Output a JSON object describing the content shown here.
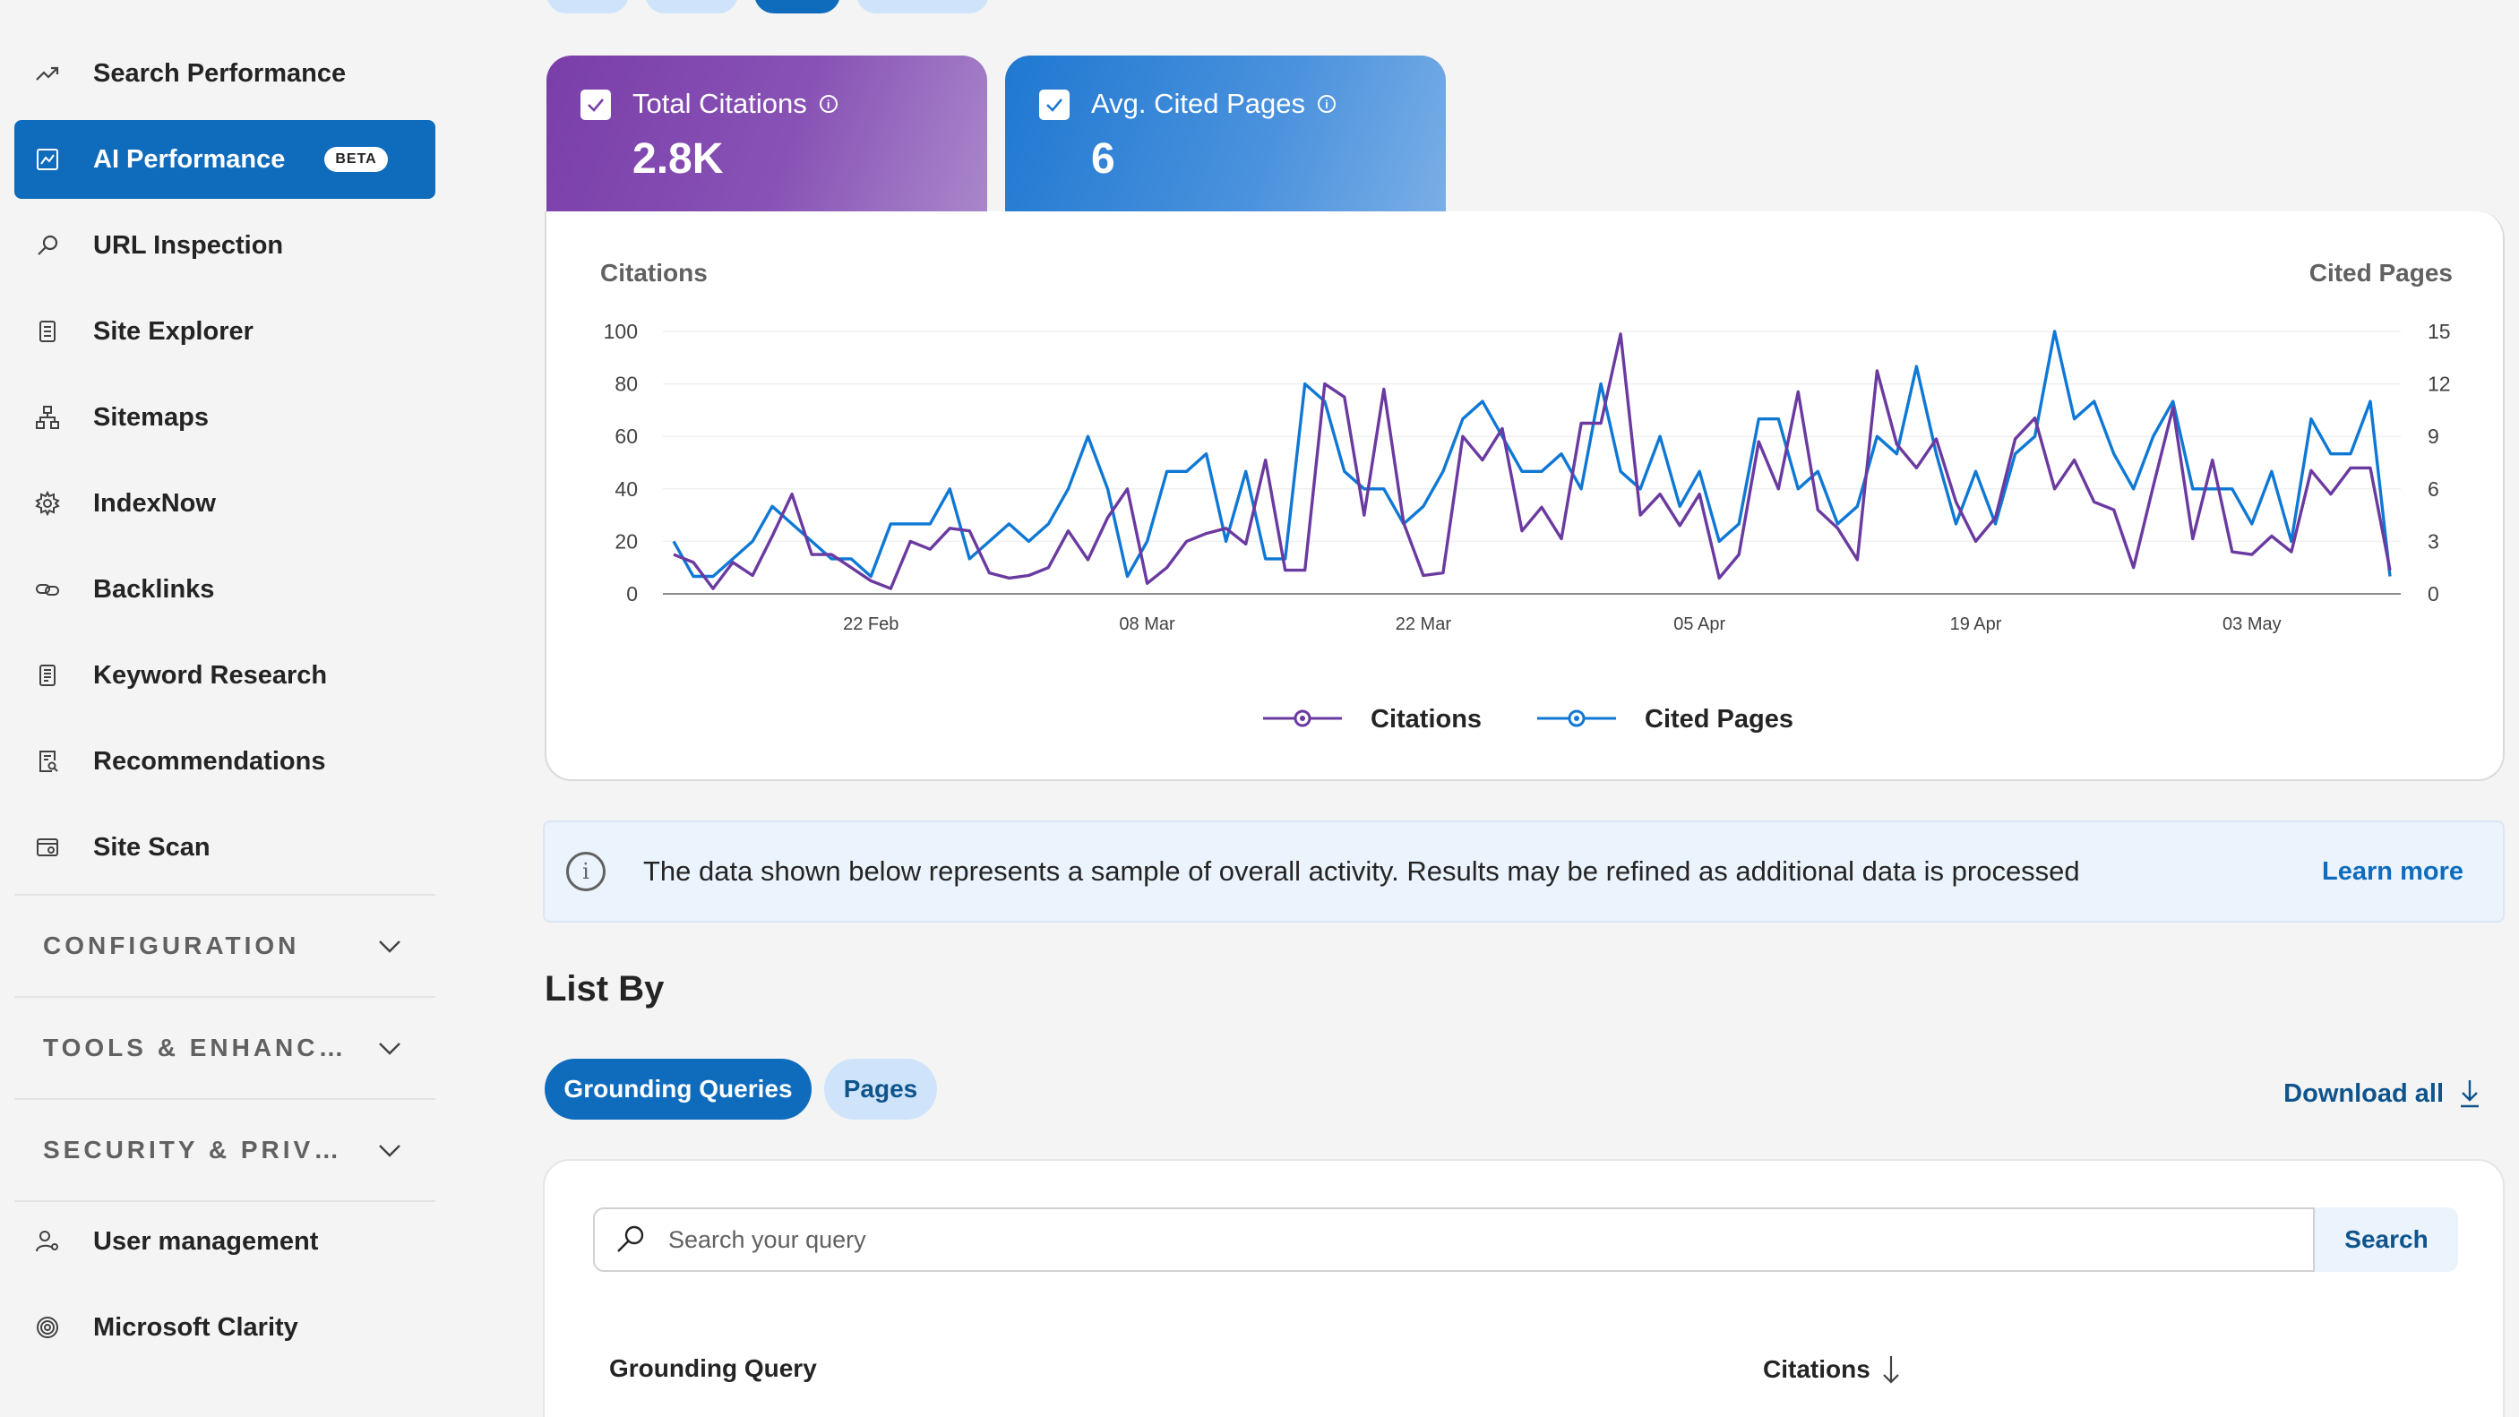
{
  "sidebar": {
    "items": [
      {
        "label": "Search Performance",
        "icon": "trending-up-icon"
      },
      {
        "label": "AI Performance",
        "icon": "chart-image-icon",
        "badge": "BETA",
        "active": true
      },
      {
        "label": "URL Inspection",
        "icon": "search-icon"
      },
      {
        "label": "Site Explorer",
        "icon": "document-list-icon"
      },
      {
        "label": "Sitemaps",
        "icon": "sitemap-icon"
      },
      {
        "label": "IndexNow",
        "icon": "settings-gear-icon"
      },
      {
        "label": "Backlinks",
        "icon": "link-icon"
      },
      {
        "label": "Keyword Research",
        "icon": "document-text-icon"
      },
      {
        "label": "Recommendations",
        "icon": "document-search-icon"
      },
      {
        "label": "Site Scan",
        "icon": "window-scan-icon"
      }
    ],
    "sections": [
      {
        "label": "CONFIGURATION"
      },
      {
        "label": "TOOLS & ENHANC…"
      },
      {
        "label": "SECURITY & PRIV…"
      }
    ],
    "bottom_items": [
      {
        "label": "User management",
        "icon": "user-settings-icon"
      },
      {
        "label": "Microsoft Clarity",
        "icon": "clarity-icon"
      }
    ]
  },
  "metrics": {
    "citations": {
      "title": "Total Citations",
      "value": "2.8K",
      "checked": true,
      "color": "#7a3ea9"
    },
    "pages": {
      "title": "Avg. Cited Pages",
      "value": "6",
      "checked": true,
      "color": "#1f78d1"
    }
  },
  "chart_data": {
    "type": "line",
    "left_axis_label": "Citations",
    "right_axis_label": "Cited Pages",
    "y_left_ticks": [
      "100",
      "80",
      "60",
      "40",
      "20",
      "0"
    ],
    "y_right_ticks": [
      "15",
      "12",
      "9",
      "6",
      "3",
      "0"
    ],
    "ylim_left": [
      0,
      100
    ],
    "ylim_right": [
      0,
      15
    ],
    "x_tick_labels": [
      "22 Feb",
      "08 Mar",
      "22 Mar",
      "05 Apr",
      "19 Apr",
      "03 May"
    ],
    "x_tick_index": [
      10,
      24,
      38,
      52,
      66,
      80
    ],
    "series": [
      {
        "name": "Citations",
        "axis": "left",
        "color": "#6b3aa0",
        "values": [
          15,
          12,
          2,
          12,
          7,
          22,
          38,
          15,
          15,
          10,
          5,
          2,
          20,
          17,
          25,
          24,
          8,
          6,
          7,
          10,
          24,
          13,
          29,
          40,
          4,
          10,
          20,
          23,
          25,
          19,
          51,
          9,
          9,
          80,
          75,
          30,
          78,
          27,
          7,
          8,
          60,
          51,
          63,
          24,
          33,
          21,
          65,
          65,
          99,
          30,
          38,
          26,
          38,
          6,
          15,
          58,
          40,
          77,
          32,
          25,
          13,
          85,
          57,
          48,
          59,
          35,
          20,
          29,
          59,
          67,
          40,
          51,
          35,
          32,
          10,
          41,
          71,
          21,
          51,
          16,
          15,
          22,
          16,
          47,
          38,
          48,
          48,
          9
        ]
      },
      {
        "name": "Cited Pages",
        "axis": "right",
        "color": "#0f78d4",
        "values": [
          3,
          1,
          1,
          2,
          3,
          5,
          4,
          3,
          2,
          2,
          1,
          4,
          4,
          4,
          6,
          2,
          3,
          4,
          3,
          4,
          6,
          9,
          6,
          1,
          3,
          7,
          7,
          8,
          3,
          7,
          2,
          2,
          12,
          11,
          7,
          6,
          6,
          4,
          5,
          7,
          10,
          11,
          9,
          7,
          7,
          8,
          6,
          12,
          7,
          6,
          9,
          5,
          7,
          3,
          4,
          10,
          10,
          6,
          7,
          4,
          5,
          9,
          8,
          13,
          8,
          4,
          7,
          4,
          8,
          9,
          15,
          10,
          11,
          8,
          6,
          9,
          11,
          6,
          6,
          6,
          4,
          7,
          3,
          10,
          8,
          8,
          11,
          1
        ]
      }
    ],
    "legend": [
      "Citations",
      "Cited Pages"
    ],
    "legend_position": "bottom-center",
    "grid": true
  },
  "banner": {
    "text": "The data shown below represents a sample of overall activity. Results may be refined as additional data is processed",
    "link": "Learn more"
  },
  "list_by": {
    "title": "List By",
    "tabs": [
      "Grounding Queries",
      "Pages"
    ],
    "active_tab": "Grounding Queries",
    "download": "Download all"
  },
  "table": {
    "search_placeholder": "Search your query",
    "search_button": "Search",
    "columns": [
      "Grounding Query",
      "Citations"
    ]
  }
}
